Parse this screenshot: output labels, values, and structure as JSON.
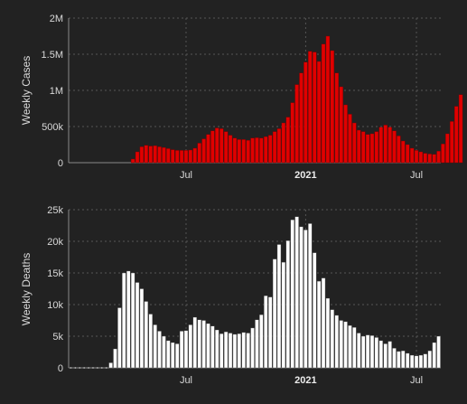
{
  "chart_data": [
    {
      "type": "bar",
      "ylabel": "Weekly Cases",
      "ylim": [
        0,
        2000000
      ],
      "yticks": [
        0,
        500000,
        1000000,
        1500000,
        2000000
      ],
      "ytick_labels": [
        "0",
        "500k",
        "1M",
        "1.5M",
        "2M"
      ],
      "xtick_labels": [
        {
          "week": 26,
          "label": "Jul"
        },
        {
          "week": 53,
          "label": "2021"
        },
        {
          "week": 78,
          "label": "Jul"
        }
      ],
      "bar_color": "#e00000",
      "bar_edge_color": "#7a0000",
      "grid": true,
      "week_start": 4,
      "values": [
        0,
        0,
        0,
        0,
        0,
        0,
        0,
        0,
        0,
        0,
        50000,
        150000,
        220000,
        240000,
        230000,
        235000,
        220000,
        210000,
        195000,
        180000,
        170000,
        170000,
        170000,
        175000,
        200000,
        270000,
        330000,
        390000,
        440000,
        480000,
        470000,
        430000,
        380000,
        340000,
        320000,
        320000,
        310000,
        340000,
        345000,
        340000,
        360000,
        380000,
        430000,
        470000,
        550000,
        630000,
        830000,
        1080000,
        1240000,
        1390000,
        1540000,
        1530000,
        1400000,
        1640000,
        1750000,
        1550000,
        1240000,
        1050000,
        800000,
        670000,
        550000,
        450000,
        430000,
        390000,
        400000,
        430000,
        490000,
        520000,
        490000,
        440000,
        370000,
        300000,
        250000,
        200000,
        170000,
        150000,
        130000,
        120000,
        115000,
        160000,
        260000,
        400000,
        570000,
        780000,
        940000
      ]
    },
    {
      "type": "bar",
      "ylabel": "Weekly Deaths",
      "ylim": [
        0,
        25000
      ],
      "yticks": [
        0,
        5000,
        10000,
        15000,
        20000,
        25000
      ],
      "ytick_labels": [
        "0",
        "5k",
        "10k",
        "15k",
        "20k",
        "25k"
      ],
      "xtick_labels": [
        {
          "week": 26,
          "label": "Jul"
        },
        {
          "week": 53,
          "label": "2021"
        },
        {
          "week": 78,
          "label": "Jul"
        }
      ],
      "bar_color": "#ffffff",
      "bar_edge_color": "#444444",
      "grid": true,
      "week_start": 0,
      "values": [
        0,
        0,
        0,
        0,
        0,
        0,
        0,
        0,
        0,
        800,
        3000,
        9500,
        15000,
        15300,
        15000,
        13500,
        12500,
        10500,
        8500,
        6800,
        5800,
        5000,
        4300,
        4000,
        3800,
        5800,
        5900,
        6800,
        8000,
        7600,
        7500,
        7000,
        6600,
        6000,
        5400,
        5700,
        5500,
        5300,
        5400,
        5600,
        5500,
        6300,
        7600,
        8400,
        11400,
        11200,
        17200,
        19500,
        16700,
        20100,
        23400,
        23900,
        22300,
        21800,
        22800,
        18200,
        13700,
        14200,
        11000,
        9200,
        8300,
        7500,
        7300,
        6700,
        6400,
        5500,
        5000,
        5200,
        5100,
        4800,
        4300,
        3800,
        4200,
        3100,
        2600,
        2700,
        2300,
        2000,
        1900,
        2000,
        2200,
        2700,
        4000,
        5000
      ]
    }
  ]
}
